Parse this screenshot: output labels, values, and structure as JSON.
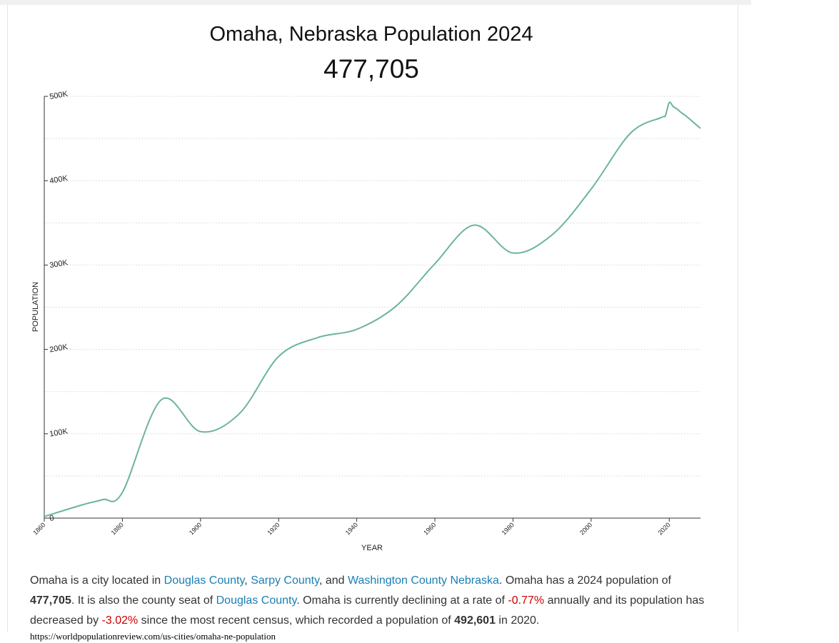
{
  "page": {
    "title": "Omaha, Nebraska Population 2024",
    "population_display": "477,705",
    "source_url": "https://worldpopulationreview.com/us-cities/omaha-ne-population"
  },
  "description": {
    "p1": "Omaha is a city located in ",
    "link_douglas": "Douglas County",
    "sep1": ", ",
    "link_sarpy": "Sarpy County",
    "sep2": ", and ",
    "link_washington": "Washington County Nebraska",
    "p2": ". Omaha has a 2024 population of ",
    "pop_2024": "477,705",
    "p3": ". It is also the county seat of ",
    "link_douglas_2": "Douglas County",
    "p4": ". Omaha is currently declining at a rate of ",
    "rate_annual": "-0.77%",
    "p5": " annually and its population has decreased by ",
    "rate_since_census": "-3.02%",
    "p6": " since the most recent census, which recorded a population of ",
    "pop_census": "492,601",
    "p7": " in 2020."
  },
  "colors": {
    "line": "#6cb49e",
    "link": "#1a7fb5",
    "negative": "#cc0000",
    "grid": "#dddddd",
    "axis": "#333333"
  },
  "chart_data": {
    "type": "line",
    "xlabel": "YEAR",
    "ylabel": "POPULATION",
    "x_ticks": [
      1860,
      1880,
      1900,
      1920,
      1940,
      1960,
      1980,
      2000,
      2020
    ],
    "y_ticks": [
      0,
      100000,
      200000,
      300000,
      400000,
      500000
    ],
    "y_tick_labels": [
      "0",
      "100K",
      "200K",
      "300K",
      "400K",
      "500K"
    ],
    "xlim": [
      1860,
      2028
    ],
    "ylim": [
      0,
      500000
    ],
    "grid": true,
    "series": [
      {
        "x": [
          1860,
          1870,
          1875,
          1880,
          1890,
          1900,
          1910,
          1920,
          1930,
          1940,
          1950,
          1960,
          1970,
          1980,
          1990,
          2000,
          2010,
          2018,
          2019,
          2020,
          2021,
          2022,
          2023,
          2024,
          2025,
          2026,
          2027,
          2028
        ],
        "y": [
          1883,
          16083,
          22000,
          30518,
          140452,
          102555,
          124096,
          191601,
          214006,
          223844,
          251117,
          301598,
          347328,
          314255,
          335795,
          390007,
          456000,
          475000,
          477000,
          492601,
          488000,
          485000,
          481000,
          477705,
          474000,
          470000,
          466000,
          462000
        ]
      }
    ]
  }
}
